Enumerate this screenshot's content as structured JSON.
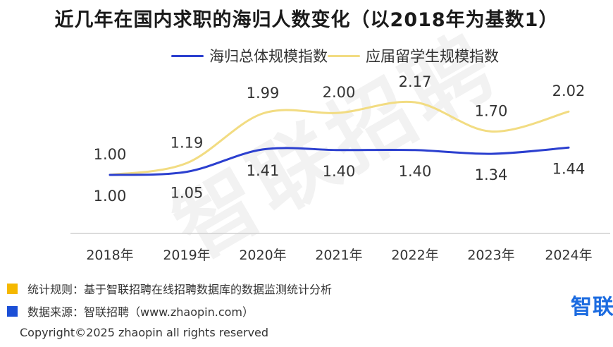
{
  "chart_data": {
    "type": "line",
    "title": "近几年在国内求职的海归人数变化（以2018年为基数1）",
    "categories": [
      "2018年",
      "2019年",
      "2020年",
      "2021年",
      "2022年",
      "2023年",
      "2024年"
    ],
    "series": [
      {
        "name": "海归总体规模指数",
        "color": "#2b3fcf",
        "values": [
          1.0,
          1.05,
          1.41,
          1.4,
          1.4,
          1.34,
          1.44
        ],
        "labels": [
          "1.00",
          "1.05",
          "1.41",
          "1.40",
          "1.40",
          "1.34",
          "1.44"
        ]
      },
      {
        "name": "应届留学生规模指数",
        "color": "#f2dc82",
        "values": [
          1.0,
          1.19,
          1.99,
          2.0,
          2.17,
          1.7,
          2.02
        ],
        "labels": [
          "1.00",
          "1.19",
          "1.99",
          "2.00",
          "2.17",
          "1.70",
          "2.02"
        ]
      }
    ],
    "legend_position": "top",
    "grid": false
  },
  "footnotes": {
    "rule": "统计规则：基于智联招聘在线招聘数据库的数据监测统计分析",
    "rule_color": "#f5b800",
    "source": "数据来源：智联招聘（www.zhaopin.com）",
    "source_color": "#1b4fd6"
  },
  "logo": {
    "text": "智联",
    "icon": "zhaopin-logo"
  },
  "watermark": "智联招聘",
  "copyright": "Copyright©2025 zhaopin all rights reserved"
}
